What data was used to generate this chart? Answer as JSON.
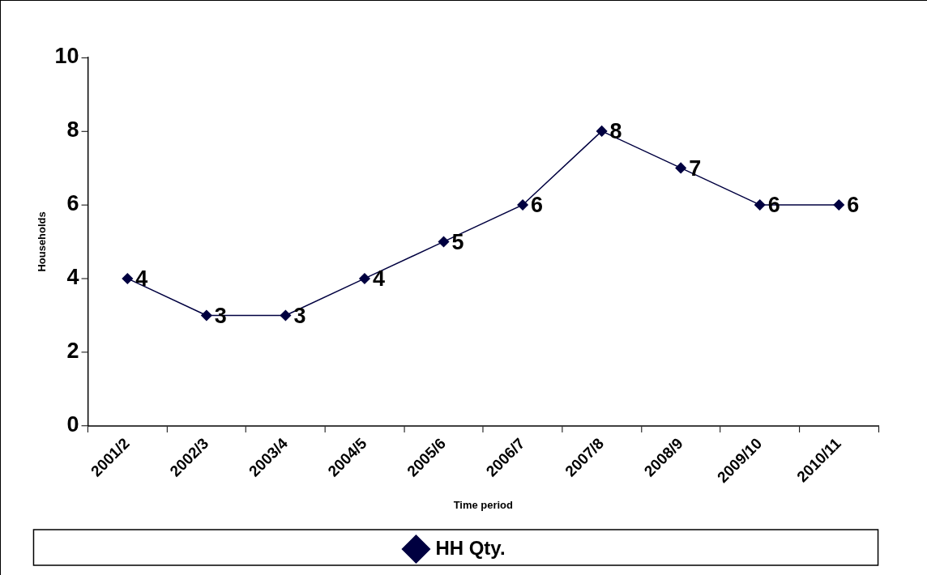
{
  "chart_data": {
    "type": "line",
    "xlabel": "Time period",
    "ylabel": "Households",
    "categories": [
      "2001/2",
      "2002/3",
      "2003/4",
      "2004/5",
      "2005/6",
      "2006/7",
      "2007/8",
      "2008/9",
      "2009/10",
      "2010/11"
    ],
    "series": [
      {
        "name": "HH Qty.",
        "color": "#000040",
        "values": [
          4,
          3,
          3,
          4,
          5,
          6,
          8,
          7,
          6,
          6
        ]
      }
    ],
    "ylim": [
      0,
      10
    ],
    "yticks": [
      0,
      2,
      4,
      6,
      8,
      10
    ],
    "grid": false,
    "legend": "bottom",
    "marker": "diamond",
    "line_style": "solid",
    "data_labels": true
  }
}
